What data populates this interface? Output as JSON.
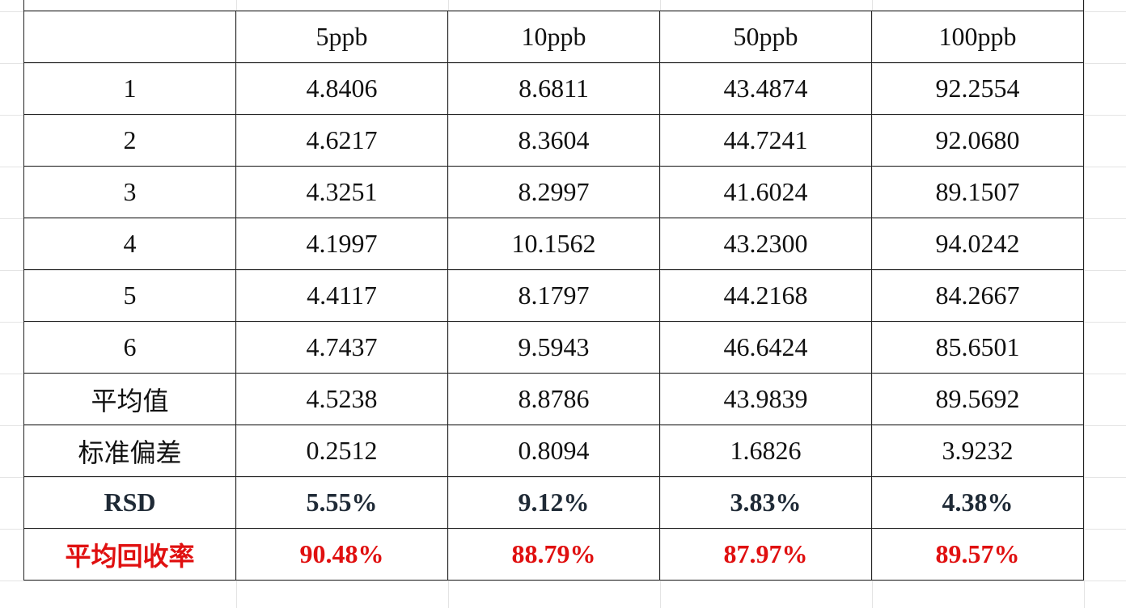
{
  "table": {
    "columns": [
      "5ppb",
      "10ppb",
      "50ppb",
      "100ppb"
    ],
    "rows": [
      {
        "label": "1",
        "cells": [
          "4.8406",
          "8.6811",
          "43.4874",
          "92.2554"
        ]
      },
      {
        "label": "2",
        "cells": [
          "4.6217",
          "8.3604",
          "44.7241",
          "92.0680"
        ]
      },
      {
        "label": "3",
        "cells": [
          "4.3251",
          "8.2997",
          "41.6024",
          "89.1507"
        ]
      },
      {
        "label": "4",
        "cells": [
          "4.1997",
          "10.1562",
          "43.2300",
          "94.0242"
        ]
      },
      {
        "label": "5",
        "cells": [
          "4.4117",
          "8.1797",
          "44.2168",
          "84.2667"
        ]
      },
      {
        "label": "6",
        "cells": [
          "4.7437",
          "9.5943",
          "46.6424",
          "85.6501"
        ]
      },
      {
        "label": "平均值",
        "cells": [
          "4.5238",
          "8.8786",
          "43.9839",
          "89.5692"
        ]
      },
      {
        "label": "标准偏差",
        "cells": [
          "0.2512",
          "0.8094",
          "1.6826",
          "3.9232"
        ]
      },
      {
        "label": "RSD",
        "cells": [
          "5.55%",
          "9.12%",
          "3.83%",
          "4.38%"
        ]
      },
      {
        "label": "平均回收率",
        "cells": [
          "90.48%",
          "88.79%",
          "87.97%",
          "89.57%"
        ]
      }
    ]
  }
}
